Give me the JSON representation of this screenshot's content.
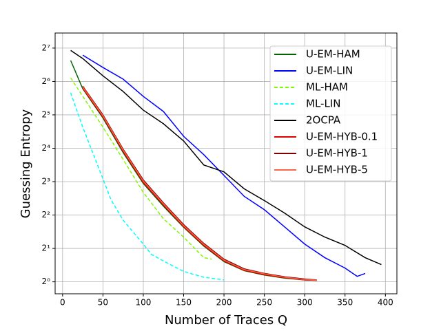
{
  "chart_data": {
    "type": "line",
    "xlabel": "Number of Traces Q",
    "ylabel": "Guessing Entropy",
    "xlim": [
      -9.25,
      414.25
    ],
    "xticks": [
      0,
      50,
      100,
      150,
      200,
      250,
      300,
      350,
      400
    ],
    "ylim": [
      0.78,
      175
    ],
    "log_y": true,
    "log_base": 2,
    "yticks": [
      {
        "value": 1,
        "label": "2⁰"
      },
      {
        "value": 2,
        "label": "2¹"
      },
      {
        "value": 4,
        "label": "2²"
      },
      {
        "value": 8,
        "label": "2³"
      },
      {
        "value": 16,
        "label": "2⁴"
      },
      {
        "value": 32,
        "label": "2⁵"
      },
      {
        "value": 64,
        "label": "2⁶"
      },
      {
        "value": 128,
        "label": "2⁷"
      }
    ],
    "grid": true,
    "legend": "upper right",
    "series": [
      {
        "name": "U-EM-HAM",
        "color": "#006400",
        "linestyle": "solid",
        "x": [
          10,
          25,
          50,
          75,
          100,
          125,
          150,
          175,
          200,
          225,
          250,
          275,
          300,
          315
        ],
        "values": [
          99,
          55,
          30,
          14.6,
          7.7,
          4.8,
          3.1,
          2.1,
          1.52,
          1.26,
          1.15,
          1.08,
          1.04,
          1.03
        ]
      },
      {
        "name": "U-EM-LIN",
        "color": "#0000ff",
        "linestyle": "solid",
        "x": [
          25,
          50,
          75,
          100,
          125,
          150,
          175,
          200,
          225,
          250,
          275,
          300,
          325,
          350,
          365,
          375
        ],
        "values": [
          110.6,
          85.6,
          67.2,
          47,
          34.3,
          20.5,
          14.0,
          9.1,
          5.9,
          4.47,
          3.13,
          2.19,
          1.65,
          1.33,
          1.12,
          1.19
        ]
      },
      {
        "name": "ML-HAM",
        "color": "#7cfc00",
        "linestyle": "dashed",
        "x": [
          10,
          25,
          50,
          75,
          100,
          125,
          150,
          175,
          185
        ],
        "values": [
          69,
          47,
          24.8,
          12.7,
          6.4,
          3.7,
          2.53,
          1.65,
          1.6
        ]
      },
      {
        "name": "ML-LIN",
        "color": "#00ffff",
        "linestyle": "dashed",
        "x": [
          10,
          25,
          50,
          60,
          75,
          100,
          110,
          125,
          150,
          175,
          200
        ],
        "values": [
          50.6,
          24.8,
          8.5,
          5.5,
          3.6,
          2.19,
          1.77,
          1.54,
          1.24,
          1.1,
          1.04
        ]
      },
      {
        "name": "2OCPA",
        "color": "#000000",
        "linestyle": "solid",
        "x": [
          10,
          25,
          50,
          75,
          100,
          125,
          150,
          175,
          200,
          225,
          250,
          275,
          300,
          325,
          350,
          375,
          395
        ],
        "values": [
          122,
          103,
          72,
          52,
          35.3,
          26.6,
          18.6,
          11.3,
          9.8,
          6.9,
          5.4,
          4.17,
          3.13,
          2.53,
          2.13,
          1.65,
          1.43
        ]
      },
      {
        "name": "U-EM-HYB-0.1",
        "color": "#e00000",
        "linestyle": "solid",
        "x": [
          25,
          50,
          75,
          100,
          125,
          150,
          175,
          200,
          225,
          250,
          275,
          300,
          315
        ],
        "values": [
          55.7,
          30.7,
          15.0,
          7.89,
          4.92,
          3.14,
          2.13,
          1.54,
          1.27,
          1.16,
          1.09,
          1.04,
          1.03
        ]
      },
      {
        "name": "U-EM-HYB-1",
        "color": "#800000",
        "linestyle": "solid",
        "x": [
          25,
          50,
          75,
          100,
          125,
          150,
          175,
          200,
          225,
          250,
          275,
          300,
          315
        ],
        "values": [
          58,
          32,
          15.7,
          8.3,
          5.15,
          3.28,
          2.22,
          1.6,
          1.31,
          1.19,
          1.11,
          1.06,
          1.04
        ]
      },
      {
        "name": "U-EM-HYB-5",
        "color": "#ff6347",
        "linestyle": "solid",
        "x": [
          25,
          50,
          75,
          100,
          125,
          150,
          175,
          200,
          225,
          250,
          275,
          300,
          315
        ],
        "values": [
          57,
          31.4,
          15.4,
          8.1,
          5.05,
          3.21,
          2.18,
          1.57,
          1.29,
          1.18,
          1.1,
          1.05,
          1.035
        ]
      }
    ]
  }
}
